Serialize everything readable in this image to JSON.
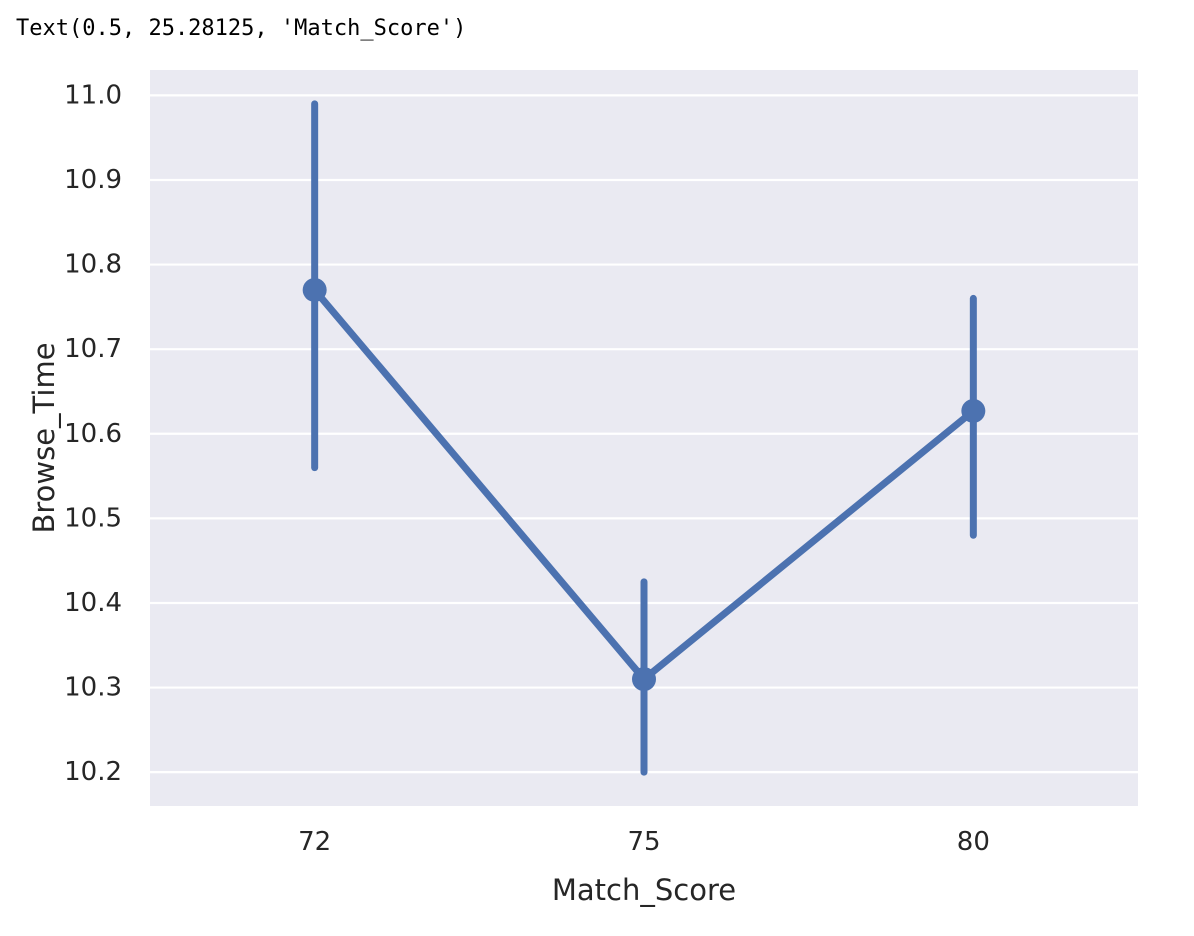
{
  "output_text": "Text(0.5, 25.28125, 'Match_Score')",
  "chart_data": {
    "type": "line",
    "categories": [
      "72",
      "75",
      "80"
    ],
    "series": [
      {
        "values": [
          10.77,
          10.31,
          10.627
        ],
        "ci_low": [
          10.56,
          10.2,
          10.48
        ],
        "ci_high": [
          10.99,
          10.425,
          10.76
        ],
        "color": "#4c72b0"
      }
    ],
    "xlabel": "Match_Score",
    "ylabel": "Browse_Time",
    "yticks": [
      "10.2",
      "10.3",
      "10.4",
      "10.5",
      "10.6",
      "10.7",
      "10.8",
      "10.9",
      "11.0"
    ],
    "ylim": [
      10.16,
      11.03
    ],
    "grid": true,
    "background": "#eaeaf2",
    "grid_color": "#ffffff"
  }
}
